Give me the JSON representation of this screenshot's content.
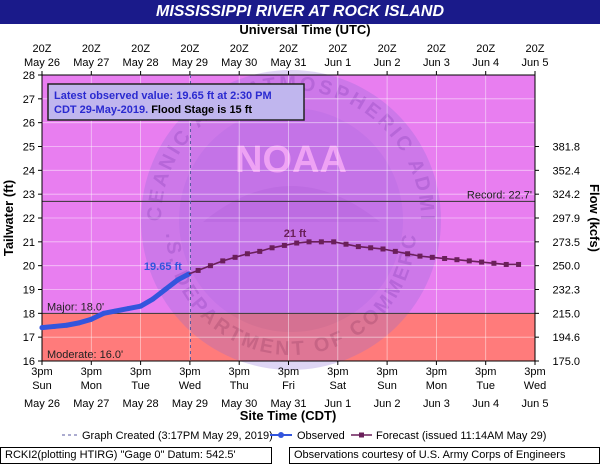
{
  "title": "MISSISSIPPI RIVER AT ROCK ISLAND",
  "chart_data": {
    "type": "line",
    "top_axis_title": "Universal Time (UTC)",
    "bottom_axis_title": "Site Time (CDT)",
    "ylabel": "Tailwater (ft)",
    "y2label": "Flow (kcfs)",
    "ylim": [
      16,
      28
    ],
    "y_ticks": [
      "16",
      "17",
      "18",
      "19",
      "20",
      "21",
      "22",
      "23",
      "24",
      "25",
      "26",
      "27",
      "28"
    ],
    "xlim": [
      "2019-05-26 15:00",
      "2019-06-05 15:00"
    ],
    "top_ticks": [
      {
        "l1": "20Z",
        "l2": "May 26"
      },
      {
        "l1": "20Z",
        "l2": "May 27"
      },
      {
        "l1": "20Z",
        "l2": "May 28"
      },
      {
        "l1": "20Z",
        "l2": "May 29"
      },
      {
        "l1": "20Z",
        "l2": "May 30"
      },
      {
        "l1": "20Z",
        "l2": "May 31"
      },
      {
        "l1": "20Z",
        "l2": "Jun 1"
      },
      {
        "l1": "20Z",
        "l2": "Jun 2"
      },
      {
        "l1": "20Z",
        "l2": "Jun 3"
      },
      {
        "l1": "20Z",
        "l2": "Jun 4"
      },
      {
        "l1": "20Z",
        "l2": "Jun 5"
      }
    ],
    "bottom_ticks": [
      {
        "l1": "3pm",
        "l2": "Sun",
        "l3": "May 26"
      },
      {
        "l1": "3pm",
        "l2": "Mon",
        "l3": "May 27"
      },
      {
        "l1": "3pm",
        "l2": "Tue",
        "l3": "May 28"
      },
      {
        "l1": "3pm",
        "l2": "Wed",
        "l3": "May 29"
      },
      {
        "l1": "3pm",
        "l2": "Thu",
        "l3": "May 30"
      },
      {
        "l1": "3pm",
        "l2": "Fri",
        "l3": "May 31"
      },
      {
        "l1": "3pm",
        "l2": "Sat",
        "l3": "Jun 1"
      },
      {
        "l1": "3pm",
        "l2": "Sun",
        "l3": "Jun 2"
      },
      {
        "l1": "3pm",
        "l2": "Mon",
        "l3": "Jun 3"
      },
      {
        "l1": "3pm",
        "l2": "Tue",
        "l3": "Jun 4"
      },
      {
        "l1": "3pm",
        "l2": "Wed",
        "l3": "Jun 5"
      }
    ],
    "flow_ticks": [
      {
        "stage": 16,
        "label": "175.0"
      },
      {
        "stage": 17,
        "label": "194.6"
      },
      {
        "stage": 18,
        "label": "215.0"
      },
      {
        "stage": 19,
        "label": "232.3"
      },
      {
        "stage": 20,
        "label": "250.0"
      },
      {
        "stage": 21,
        "label": "273.5"
      },
      {
        "stage": 22,
        "label": "297.9"
      },
      {
        "stage": 23,
        "label": "324.2"
      },
      {
        "stage": 24,
        "label": "352.4"
      },
      {
        "stage": 25,
        "label": "381.8"
      }
    ],
    "zones": [
      {
        "name": "Moderate",
        "from": 16,
        "to": 18,
        "color": "#ff7b7b"
      },
      {
        "name": "Major",
        "from": 18,
        "to": 28,
        "color": "#e87ef0"
      }
    ],
    "lines": [
      {
        "label": "Record: 22.7'",
        "value": 22.7,
        "color": "#333333"
      },
      {
        "label": "Major: 18.0'",
        "value": 18.0,
        "color": "#333333"
      },
      {
        "label": "Moderate: 16.0'",
        "value": 16.0,
        "color": "#333333"
      }
    ],
    "graph_created": "2019-05-29 15:17",
    "series": [
      {
        "name": "Observed",
        "color": "#3355dd",
        "points": [
          [
            "2019-05-26 15:00",
            17.4
          ],
          [
            "2019-05-26 21:00",
            17.45
          ],
          [
            "2019-05-27 03:00",
            17.5
          ],
          [
            "2019-05-27 09:00",
            17.6
          ],
          [
            "2019-05-27 15:00",
            17.75
          ],
          [
            "2019-05-27 21:00",
            18.0
          ],
          [
            "2019-05-28 03:00",
            18.1
          ],
          [
            "2019-05-28 09:00",
            18.2
          ],
          [
            "2019-05-28 15:00",
            18.3
          ],
          [
            "2019-05-28 21:00",
            18.6
          ],
          [
            "2019-05-29 03:00",
            19.0
          ],
          [
            "2019-05-29 09:00",
            19.4
          ],
          [
            "2019-05-29 14:30",
            19.65
          ]
        ]
      },
      {
        "name": "Forecast",
        "color": "#6a1f5a",
        "points": [
          [
            "2019-05-29 19:00",
            19.8
          ],
          [
            "2019-05-30 01:00",
            20.0
          ],
          [
            "2019-05-30 07:00",
            20.2
          ],
          [
            "2019-05-30 13:00",
            20.35
          ],
          [
            "2019-05-30 19:00",
            20.5
          ],
          [
            "2019-05-31 01:00",
            20.6
          ],
          [
            "2019-05-31 07:00",
            20.75
          ],
          [
            "2019-05-31 13:00",
            20.85
          ],
          [
            "2019-05-31 19:00",
            20.95
          ],
          [
            "2019-06-01 01:00",
            21.0
          ],
          [
            "2019-06-01 07:00",
            21.0
          ],
          [
            "2019-06-01 13:00",
            21.0
          ],
          [
            "2019-06-01 19:00",
            20.9
          ],
          [
            "2019-06-02 01:00",
            20.8
          ],
          [
            "2019-06-02 07:00",
            20.75
          ],
          [
            "2019-06-02 13:00",
            20.7
          ],
          [
            "2019-06-02 19:00",
            20.6
          ],
          [
            "2019-06-03 01:00",
            20.5
          ],
          [
            "2019-06-03 07:00",
            20.4
          ],
          [
            "2019-06-03 13:00",
            20.35
          ],
          [
            "2019-06-03 19:00",
            20.3
          ],
          [
            "2019-06-04 01:00",
            20.25
          ],
          [
            "2019-06-04 07:00",
            20.2
          ],
          [
            "2019-06-04 13:00",
            20.15
          ],
          [
            "2019-06-04 19:00",
            20.1
          ],
          [
            "2019-06-05 01:00",
            20.05
          ],
          [
            "2019-06-05 07:00",
            20.05
          ]
        ]
      }
    ],
    "annotations": {
      "observed_value_label": "19.65 ft",
      "forecast_peak_label": "21 ft",
      "info_line1": "Latest observed value: 19.65 ft at 2:30 PM",
      "info_line2a": "CDT 29-May-2019.",
      "info_line2b": " Flood Stage is 15 ft"
    },
    "legend": {
      "graph_created": "Graph Created (3:17PM May 29, 2019)",
      "observed": "Observed",
      "forecast": "Forecast (issued 11:14AM May 29)"
    }
  },
  "footer": {
    "left": "RCKI2(plotting HTIRG) \"Gage 0\" Datum:  542.5'",
    "right": "Observations courtesy of U.S. Army Corps of Engineers"
  },
  "watermark": {
    "logo_text": "NOAA",
    "ring_top": "NATIONAL OCEANIC AND ATMOSPHERIC ADMINISTRATION",
    "ring_bottom": "U.S. DEPARTMENT OF COMMERCE"
  }
}
